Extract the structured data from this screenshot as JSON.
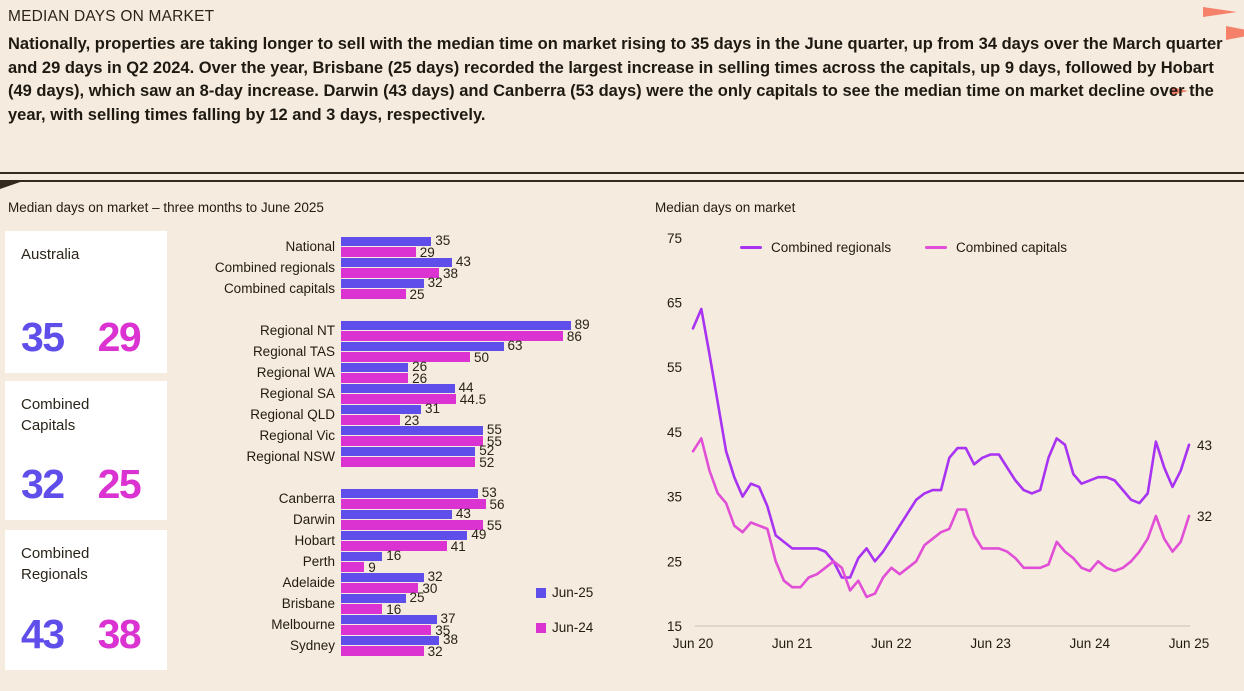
{
  "colors": {
    "background": "#F5EBDE",
    "jun25": "#5F4EEA",
    "jun24": "#DB33D2",
    "regionals_line": "#A833F2",
    "capitals_line": "#E24FD7",
    "coral": "#F5816B",
    "axis": "#D9CFBF",
    "text_dark": "#221C10"
  },
  "header": {
    "title": "MEDIAN DAYS ON MARKET",
    "paragraph": "Nationally, properties are taking longer to sell with the median time on market rising to 35 days in the June quarter, up from 34 days over the March quarter and 29 days in Q2 2024. Over the year, Brisbane (25 days) recorded the largest increase in selling times across the capitals, up 9 days, followed by Hobart (49 days), which saw an 8-day increase. Darwin (43 days) and Canberra (53 days) were the only capitals to see the median time on market decline over the year, with selling times falling by 12 and 3 days, respectively."
  },
  "summary": {
    "cards": [
      {
        "label": "Australia",
        "jun25": "35",
        "jun24": "29"
      },
      {
        "label": "Combined Capitals",
        "jun25": "32",
        "jun24": "25"
      },
      {
        "label": "Combined Regionals",
        "jun25": "43",
        "jun24": "38"
      }
    ]
  },
  "chart_data": [
    {
      "type": "bar",
      "orientation": "horizontal",
      "title": "Median days on market – three months to June 2025",
      "categories": [
        "National",
        "Combined regionals",
        "Combined capitals",
        "Regional NT",
        "Regional TAS",
        "Regional WA",
        "Regional SA",
        "Regional QLD",
        "Regional Vic",
        "Regional NSW",
        "Canberra",
        "Darwin",
        "Hobart",
        "Perth",
        "Adelaide",
        "Brisbane",
        "Melbourne",
        "Sydney"
      ],
      "group_breaks": [
        3,
        10
      ],
      "series": [
        {
          "name": "Jun-25",
          "color_key": "jun25",
          "values": [
            35,
            43,
            32,
            89,
            63,
            26,
            44,
            31,
            55,
            52,
            53,
            43,
            49,
            16,
            32,
            25,
            37,
            38
          ]
        },
        {
          "name": "Jun-24",
          "color_key": "jun24",
          "values": [
            29,
            38,
            25,
            86,
            50,
            26,
            44.5,
            23,
            55,
            52,
            56,
            55,
            41,
            9,
            30,
            16,
            35,
            32
          ]
        }
      ],
      "xlim": [
        0,
        92
      ],
      "legend_position": "right"
    },
    {
      "type": "line",
      "title": "Median days on market",
      "x_ticks": [
        "Jun 20",
        "Jun 21",
        "Jun 22",
        "Jun 23",
        "Jun 24",
        "Jun 25"
      ],
      "y_ticks": [
        75,
        65,
        55,
        45,
        35,
        25,
        15
      ],
      "ylim": [
        15,
        75
      ],
      "x_interval": "monthly",
      "legend_position": "top",
      "series": [
        {
          "name": "Combined regionals",
          "color_key": "regionals_line",
          "end_label": "43",
          "values": [
            61,
            64,
            57,
            49.5,
            42,
            38,
            35,
            37,
            36.5,
            33.5,
            29,
            28,
            27,
            27,
            27,
            27,
            26.5,
            25,
            22.5,
            22.5,
            25.5,
            27,
            25,
            26.5,
            28.5,
            30.5,
            32.5,
            34.5,
            35.5,
            36,
            36,
            41,
            42.5,
            42.5,
            40,
            41,
            41.5,
            41.5,
            39.5,
            37.5,
            36,
            35.5,
            36,
            41,
            44,
            43,
            38.5,
            37,
            37.5,
            38,
            38,
            37.5,
            36,
            34.5,
            34,
            35.5,
            43.5,
            39.5,
            36.5,
            39,
            43
          ]
        },
        {
          "name": "Combined capitals",
          "color_key": "capitals_line",
          "end_label": "32",
          "values": [
            42,
            44,
            39,
            35.5,
            34,
            30.5,
            29.5,
            31,
            30.5,
            30,
            25,
            22,
            21,
            21,
            22.5,
            23,
            24,
            25,
            24,
            20.5,
            22,
            19.5,
            20,
            22.5,
            24,
            23,
            24,
            25,
            27.5,
            28.5,
            29.5,
            30,
            33,
            33,
            29,
            27,
            27,
            27,
            26.5,
            25.5,
            24,
            24,
            24,
            24.5,
            28,
            26.5,
            25.5,
            24,
            23.5,
            25,
            24,
            23.5,
            24,
            25,
            26.5,
            28.5,
            32,
            28.5,
            26.5,
            28,
            32
          ]
        }
      ]
    }
  ]
}
